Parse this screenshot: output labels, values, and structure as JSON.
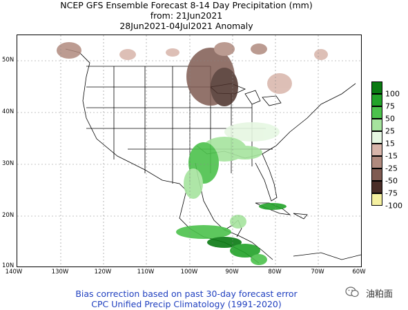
{
  "title": {
    "line1": "NCEP GFS Ensemble Forecast 8-14 Day Precipitation (mm)",
    "line2": "from: 21Jun2021",
    "line3": "28Jun2021-04Jul2021 Anomaly"
  },
  "map": {
    "lat_labels": [
      "50N",
      "40N",
      "30N",
      "20N",
      "10N"
    ],
    "lon_labels": [
      "140W",
      "130W",
      "120W",
      "110W",
      "100W",
      "90W",
      "80W",
      "70W",
      "60W"
    ]
  },
  "legend": {
    "items": [
      {
        "label": "100",
        "color": "#0a7a12"
      },
      {
        "label": "75",
        "color": "#22a329"
      },
      {
        "label": "50",
        "color": "#4cc24c"
      },
      {
        "label": "25",
        "color": "#a6e49e"
      },
      {
        "label": "15",
        "color": "#e6f7e2"
      },
      {
        "label": "-15",
        "color": "#d8b5aa"
      },
      {
        "label": "-25",
        "color": "#b08a7e"
      },
      {
        "label": "-50",
        "color": "#7f5b52"
      },
      {
        "label": "-75",
        "color": "#4a2e28"
      },
      {
        "label": "-100",
        "color": "#f5f0a0"
      }
    ]
  },
  "footer": {
    "line1": "Bias correction based on past 30-day forecast error",
    "line2": "CPC Unified Precip Climatology (1991-2020)"
  },
  "watermark": {
    "text": "油粕面",
    "icon": "wechat-icon"
  }
}
